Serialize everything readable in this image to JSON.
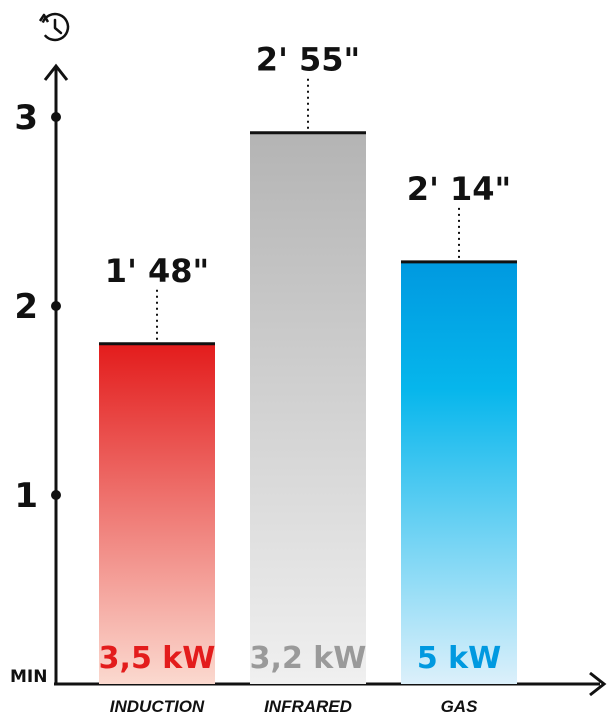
{
  "chart_data": {
    "type": "bar",
    "y_unit_label": "MIN",
    "ylim": [
      0,
      3.3
    ],
    "yticks": [
      1,
      2,
      3
    ],
    "ytick_labels": [
      "1",
      "2",
      "3"
    ],
    "y_axis_icon": "clock-history-icon",
    "grid": false,
    "categories": [
      "INDUCTION",
      "INFRARED",
      "GAS"
    ],
    "values": [
      1.8,
      2.9167,
      2.2333
    ],
    "time_labels": [
      "1' 48\"",
      "2' 55\"",
      "2' 14\""
    ],
    "power_labels": [
      "3,5 kW",
      "3,2 kW",
      "5 kW"
    ],
    "colors": {
      "INDUCTION": {
        "top": "#e31c1c",
        "bottom": "#fbd9cf",
        "label": "#e31c1c"
      },
      "INFRARED": {
        "top": "#b4b4b4",
        "bottom": "#f0f0f0",
        "label": "#9a9a9a"
      },
      "GAS": {
        "top": "#0099e0",
        "bottom": "#dcf0fb",
        "label": "#0099e0"
      }
    }
  }
}
